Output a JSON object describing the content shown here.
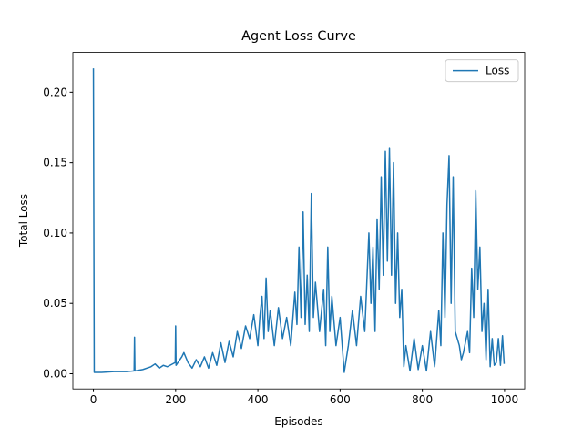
{
  "chart_data": {
    "type": "line",
    "title": "Agent Loss Curve",
    "xlabel": "Episodes",
    "ylabel": "Total Loss",
    "x": [
      0,
      2,
      20,
      50,
      80,
      99,
      100,
      101,
      120,
      140,
      150,
      160,
      170,
      180,
      199,
      200,
      201,
      215,
      220,
      230,
      240,
      250,
      260,
      270,
      280,
      290,
      300,
      310,
      320,
      330,
      340,
      350,
      360,
      370,
      380,
      390,
      400,
      405,
      410,
      415,
      420,
      425,
      430,
      440,
      450,
      460,
      470,
      480,
      490,
      495,
      500,
      505,
      510,
      515,
      520,
      525,
      530,
      535,
      540,
      550,
      560,
      565,
      570,
      575,
      580,
      590,
      600,
      610,
      620,
      630,
      640,
      650,
      660,
      670,
      675,
      680,
      685,
      690,
      695,
      700,
      705,
      710,
      715,
      720,
      725,
      730,
      735,
      740,
      745,
      750,
      755,
      760,
      770,
      780,
      790,
      800,
      810,
      820,
      830,
      840,
      845,
      850,
      855,
      860,
      865,
      870,
      875,
      880,
      890,
      895,
      900,
      910,
      915,
      920,
      925,
      930,
      935,
      940,
      945,
      950,
      955,
      960,
      965,
      970,
      975,
      980,
      985,
      990,
      995,
      999
    ],
    "series": [
      {
        "name": "Loss",
        "color": "#1f77b4",
        "values": [
          0.217,
          0.001,
          0.001,
          0.0015,
          0.0015,
          0.002,
          0.026,
          0.002,
          0.003,
          0.005,
          0.007,
          0.004,
          0.006,
          0.005,
          0.008,
          0.034,
          0.006,
          0.012,
          0.015,
          0.008,
          0.004,
          0.01,
          0.005,
          0.012,
          0.004,
          0.015,
          0.006,
          0.022,
          0.008,
          0.023,
          0.012,
          0.03,
          0.018,
          0.034,
          0.025,
          0.042,
          0.02,
          0.041,
          0.055,
          0.025,
          0.068,
          0.03,
          0.045,
          0.02,
          0.047,
          0.025,
          0.04,
          0.02,
          0.058,
          0.035,
          0.09,
          0.04,
          0.115,
          0.035,
          0.07,
          0.03,
          0.128,
          0.04,
          0.065,
          0.03,
          0.06,
          0.02,
          0.09,
          0.03,
          0.055,
          0.02,
          0.04,
          0.001,
          0.02,
          0.045,
          0.02,
          0.055,
          0.03,
          0.1,
          0.05,
          0.09,
          0.03,
          0.11,
          0.06,
          0.14,
          0.07,
          0.158,
          0.08,
          0.16,
          0.07,
          0.15,
          0.05,
          0.1,
          0.04,
          0.06,
          0.005,
          0.02,
          0.002,
          0.025,
          0.003,
          0.02,
          0.002,
          0.03,
          0.005,
          0.045,
          0.02,
          0.1,
          0.04,
          0.12,
          0.155,
          0.05,
          0.14,
          0.03,
          0.02,
          0.01,
          0.015,
          0.03,
          0.015,
          0.075,
          0.04,
          0.13,
          0.06,
          0.09,
          0.03,
          0.05,
          0.01,
          0.06,
          0.005,
          0.025,
          0.006,
          0.008,
          0.025,
          0.006,
          0.027,
          0.007
        ]
      }
    ],
    "xlim": [
      -49.95,
      1048.95
    ],
    "xticks": [
      0,
      200,
      400,
      600,
      800,
      1000
    ],
    "ylim": [
      -0.0108,
      0.2283
    ],
    "yticks": [
      {
        "value": 0,
        "label": "0.00"
      },
      {
        "value": 0.05,
        "label": "0.05"
      },
      {
        "value": 0.1,
        "label": "0.10"
      },
      {
        "value": 0.15,
        "label": "0.15"
      },
      {
        "value": 0.2,
        "label": "0.20"
      }
    ],
    "legend": "upper right"
  }
}
